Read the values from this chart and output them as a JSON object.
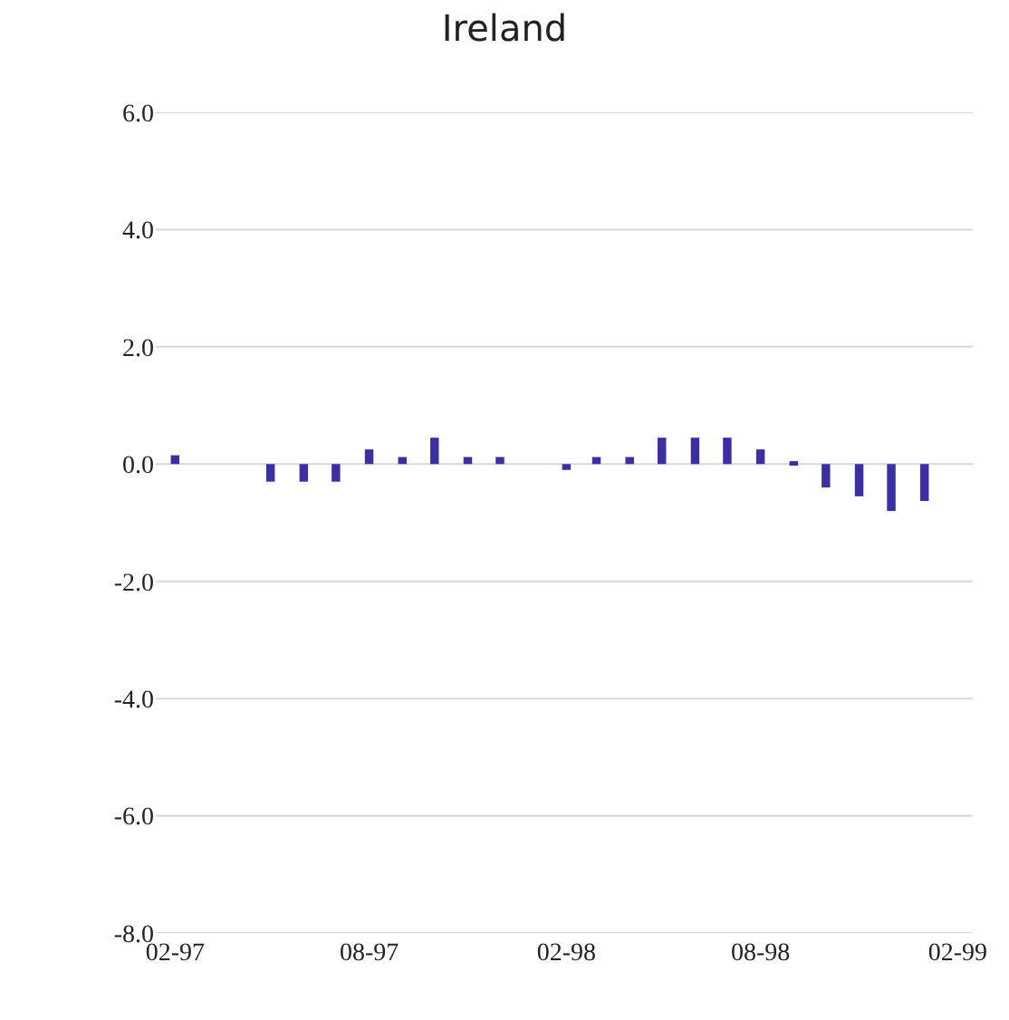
{
  "chart_data": {
    "type": "bar",
    "title": "Ireland",
    "x": [
      "1997-02",
      "1997-03",
      "1997-04",
      "1997-05",
      "1997-06",
      "1997-07",
      "1997-08",
      "1997-09",
      "1997-10",
      "1997-11",
      "1997-12",
      "1998-01",
      "1998-02",
      "1998-03",
      "1998-04",
      "1998-05",
      "1998-06",
      "1998-07",
      "1998-08",
      "1998-09",
      "1998-10",
      "1998-11",
      "1998-12",
      "1999-01"
    ],
    "values": [
      0.15,
      null,
      null,
      -0.3,
      -0.3,
      -0.3,
      0.25,
      0.12,
      0.45,
      0.12,
      0.12,
      null,
      -0.1,
      0.12,
      0.12,
      0.45,
      0.45,
      0.45,
      0.25,
      0.05,
      -0.4,
      -0.55,
      -0.8,
      -0.63
    ],
    "color": "#3b2fa3",
    "xlim": [
      "1997-01-14",
      "1999-02-15"
    ],
    "xticks": [
      {
        "value": "1997-02",
        "label": "02-97"
      },
      {
        "value": "1997-08",
        "label": "08-97"
      },
      {
        "value": "1998-02",
        "label": "02-98"
      },
      {
        "value": "1998-08",
        "label": "08-98"
      },
      {
        "value": "1999-02",
        "label": "02-99"
      }
    ],
    "ylim": [
      -8,
      6
    ],
    "yticks": [
      {
        "value": -8,
        "label": "-8.0"
      },
      {
        "value": -6,
        "label": "-6.0"
      },
      {
        "value": -4,
        "label": "-4.0"
      },
      {
        "value": -2,
        "label": "-2.0"
      },
      {
        "value": 0,
        "label": "0.0"
      },
      {
        "value": 2,
        "label": "2.0"
      },
      {
        "value": 4,
        "label": "4.0"
      },
      {
        "value": 6,
        "label": "6.0"
      }
    ],
    "grid": "y"
  }
}
